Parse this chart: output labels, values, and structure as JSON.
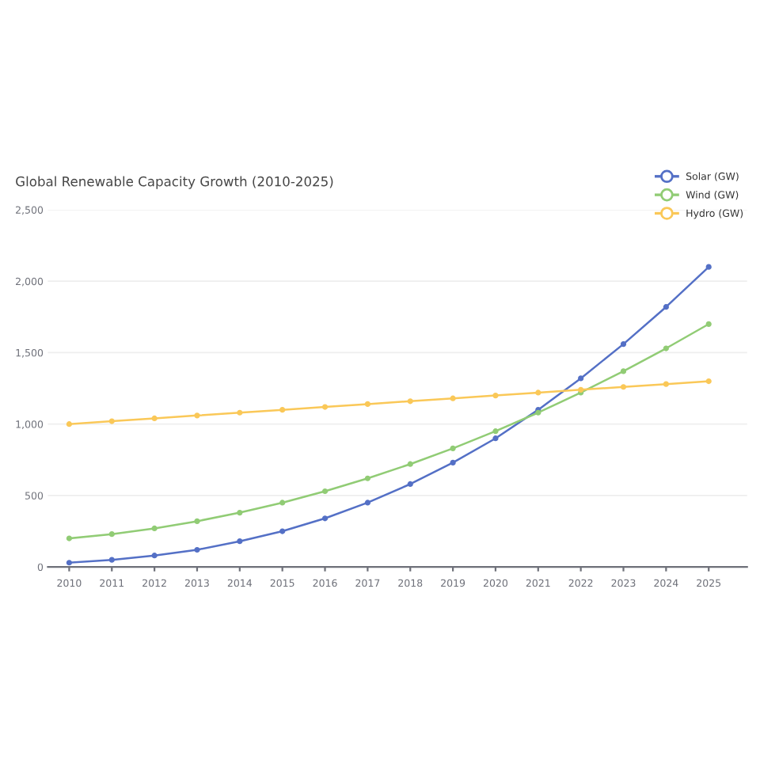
{
  "chart_data": {
    "type": "line",
    "title": "Global Renewable Capacity Growth (2010-2025)",
    "categories": [
      "2010",
      "2011",
      "2012",
      "2013",
      "2014",
      "2015",
      "2016",
      "2017",
      "2018",
      "2019",
      "2020",
      "2021",
      "2022",
      "2023",
      "2024",
      "2025"
    ],
    "series": [
      {
        "name": "Solar (GW)",
        "color": "#5470c6",
        "values": [
          30,
          50,
          80,
          120,
          180,
          250,
          340,
          450,
          580,
          730,
          900,
          1100,
          1320,
          1560,
          1820,
          2100
        ]
      },
      {
        "name": "Wind (GW)",
        "color": "#91cc75",
        "values": [
          200,
          230,
          270,
          320,
          380,
          450,
          530,
          620,
          720,
          830,
          950,
          1080,
          1220,
          1370,
          1530,
          1700
        ]
      },
      {
        "name": "Hydro (GW)",
        "color": "#fac858",
        "values": [
          1000,
          1020,
          1040,
          1060,
          1080,
          1100,
          1120,
          1140,
          1160,
          1180,
          1200,
          1220,
          1240,
          1260,
          1280,
          1300
        ]
      }
    ],
    "ylim": [
      0,
      2500
    ],
    "yticks": [
      {
        "value": 0,
        "label": "0"
      },
      {
        "value": 500,
        "label": "500"
      },
      {
        "value": 1000,
        "label": "1,000"
      },
      {
        "value": 1500,
        "label": "1,500"
      },
      {
        "value": 2000,
        "label": "2,000"
      },
      {
        "value": 2500,
        "label": "2,500"
      }
    ],
    "grid": "y",
    "legend": "top right",
    "marker": "circle",
    "line_style": "solid"
  }
}
